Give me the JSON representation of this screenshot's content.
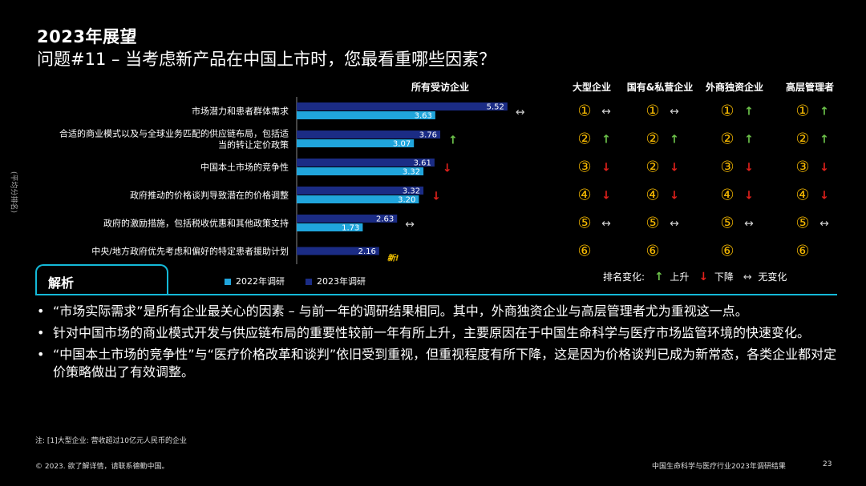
{
  "header": {
    "title": "2023年展望",
    "subtitle": "问题#11 – 当考虑新产品在中国上市时，您最看重哪些因素？"
  },
  "chart_data": {
    "type": "bar",
    "orientation": "horizontal",
    "ylabel": "(平均分排名)",
    "column_title": "所有受访企业",
    "categories": [
      "市场潜力和患者群体需求",
      "合适的商业模式以及与全球业务匹配的供应链布局，包括适当的转让定价政策",
      "中国本土市场的竞争性",
      "政府推动的价格谈判导致潜在的价格调整",
      "政府的激励措施，包括税收优惠和其他政策支持",
      "中央/地方政府优先考虑和偏好的特定患者援助计划"
    ],
    "category_lines": [
      [
        "市场潜力和患者群体需求"
      ],
      [
        "合适的商业模式以及与全球业务匹配的供应链布局，包括适",
        "当的转让定价政策"
      ],
      [
        "中国本土市场的竞争性"
      ],
      [
        "政府推动的价格谈判导致潜在的价格调整"
      ],
      [
        "政府的激励措施，包括税收优惠和其他政策支持"
      ],
      [
        "中央/地方政府优先考虑和偏好的特定患者援助计划"
      ]
    ],
    "series": [
      {
        "name": "2023年调研",
        "color": "#1b2c85",
        "values": [
          5.52,
          3.76,
          3.61,
          3.32,
          2.63,
          2.16
        ]
      },
      {
        "name": "2022年调研",
        "color": "#20a5dc",
        "values": [
          3.63,
          3.07,
          3.32,
          3.2,
          1.73,
          null
        ]
      }
    ],
    "xlim": [
      0,
      6.3
    ],
    "change_markers": [
      "same",
      "up",
      "down",
      "down",
      "same",
      "new"
    ],
    "new_label": "新!",
    "legend_position": "bottom",
    "grid": false
  },
  "rank_table": {
    "columns": [
      "大型企业",
      "国有&私营企业",
      "外商独资企业",
      "高层管理者"
    ],
    "rows": [
      [
        {
          "rank": "①",
          "change": "same"
        },
        {
          "rank": "①",
          "change": "same"
        },
        {
          "rank": "①",
          "change": "up"
        },
        {
          "rank": "①",
          "change": "up"
        }
      ],
      [
        {
          "rank": "②",
          "change": "up"
        },
        {
          "rank": "②",
          "change": "up"
        },
        {
          "rank": "②",
          "change": "up"
        },
        {
          "rank": "②",
          "change": "up"
        }
      ],
      [
        {
          "rank": "③",
          "change": "down"
        },
        {
          "rank": "②",
          "change": "down"
        },
        {
          "rank": "③",
          "change": "down"
        },
        {
          "rank": "③",
          "change": "down"
        }
      ],
      [
        {
          "rank": "④",
          "change": "down"
        },
        {
          "rank": "④",
          "change": "down"
        },
        {
          "rank": "④",
          "change": "down"
        },
        {
          "rank": "④",
          "change": "down"
        }
      ],
      [
        {
          "rank": "⑤",
          "change": "same"
        },
        {
          "rank": "⑤",
          "change": "same"
        },
        {
          "rank": "⑤",
          "change": "same"
        },
        {
          "rank": "⑤",
          "change": "same"
        }
      ],
      [
        {
          "rank": "⑥",
          "change": ""
        },
        {
          "rank": "⑥",
          "change": ""
        },
        {
          "rank": "⑥",
          "change": ""
        },
        {
          "rank": "⑥",
          "change": ""
        }
      ]
    ],
    "symbols": {
      "up": "↑",
      "down": "↓",
      "same": "↔"
    },
    "colors": {
      "rank": "#f5b800",
      "up": "#6cc24a",
      "down": "#e0201b",
      "same": "#d0d0d0"
    }
  },
  "rank_legend": {
    "label": "排名变化:",
    "up": "上升",
    "down": "下降",
    "same": "无变化"
  },
  "analysis": {
    "title": "解析",
    "bullets": [
      "“市场实际需求”是所有企业最关心的因素 – 与前一年的调研结果相同。其中，外商独资企业与高层管理者尤为重视这一点。",
      "针对中国市场的商业模式开发与供应链布局的重要性较前一年有所上升，主要原因在于中国生命科学与医疗市场监管环境的快速变化。",
      "“中国本土市场的竞争性”与“医疗价格改革和谈判”依旧受到重视，但重视程度有所下降，这是因为价格谈判已成为新常态，各类企业都对定价策略做出了有效调整。"
    ],
    "accent_color": "#14b9d8"
  },
  "footer": {
    "footnote": "注: [1]大型企业: 营收超过10亿元人民币的企业",
    "copyright": "© 2023. 欲了解详情，请联系德勤中国。",
    "report_name": "中国生命科学与医疗行业2023年调研结果",
    "page_number": "23"
  }
}
